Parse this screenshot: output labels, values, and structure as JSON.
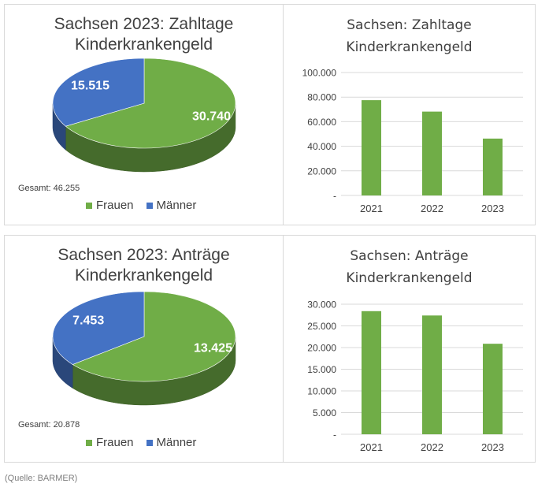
{
  "colors": {
    "frauen": "#70ad47",
    "maenner": "#4472c4",
    "axis_text": "#404040",
    "grid": "#d9d9d9"
  },
  "source": "(Quelle: BARMER)",
  "legend": {
    "frauen": "Frauen",
    "maenner": "Männer"
  },
  "chart_data": [
    {
      "type": "pie",
      "title_line1": "Sachsen 2023: Zahltage",
      "title_line2": "Kinderkrankengeld",
      "total_label": "Gesamt: 46.255",
      "slices": [
        {
          "name": "Frauen",
          "value": 30740,
          "label": "30.740"
        },
        {
          "name": "Männer",
          "value": 15515,
          "label": "15.515"
        }
      ],
      "legend_position": "bottom"
    },
    {
      "type": "bar",
      "title_line1": "Sachsen: Zahltage",
      "title_line2": "Kinderkrankengeld",
      "categories": [
        "2021",
        "2022",
        "2023"
      ],
      "values": [
        77500,
        68200,
        46255
      ],
      "ylim": [
        0,
        100000
      ],
      "yticks": [
        "-",
        "20.000",
        "40.000",
        "60.000",
        "80.000",
        "100.000"
      ],
      "grid": true
    },
    {
      "type": "pie",
      "title_line1": "Sachsen 2023: Anträge",
      "title_line2": "Kinderkrankengeld",
      "total_label": "Gesamt: 20.878",
      "slices": [
        {
          "name": "Frauen",
          "value": 13425,
          "label": "13.425"
        },
        {
          "name": "Männer",
          "value": 7453,
          "label": "7.453"
        }
      ],
      "legend_position": "bottom"
    },
    {
      "type": "bar",
      "title_line1": "Sachsen: Anträge",
      "title_line2": "Kinderkrankengeld",
      "categories": [
        "2021",
        "2022",
        "2023"
      ],
      "values": [
        28400,
        27400,
        20878
      ],
      "ylim": [
        0,
        30000
      ],
      "yticks": [
        "-",
        "5.000",
        "10.000",
        "15.000",
        "20.000",
        "25.000",
        "30.000"
      ],
      "grid": true
    }
  ]
}
